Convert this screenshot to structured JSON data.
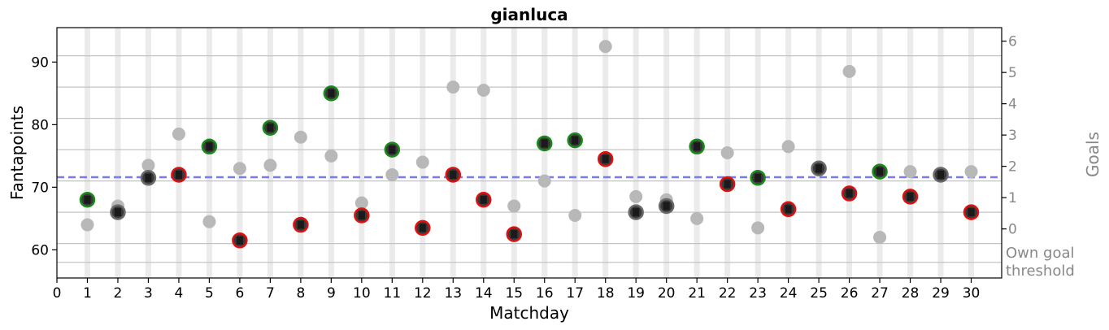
{
  "chart_data": {
    "type": "scatter",
    "title": "gianluca",
    "xlabel": "Matchday",
    "ylabel": "Fantapoints",
    "y2label": "Goals",
    "xlim": [
      0,
      31
    ],
    "ylim": [
      55.5,
      95.5
    ],
    "x_ticks": [
      0,
      1,
      2,
      3,
      4,
      5,
      6,
      7,
      8,
      9,
      10,
      11,
      12,
      13,
      14,
      15,
      16,
      17,
      18,
      19,
      20,
      21,
      22,
      23,
      24,
      25,
      26,
      27,
      28,
      29,
      30
    ],
    "y_ticks": [
      60,
      70,
      80,
      90
    ],
    "goals_ticks": [
      {
        "label": "6",
        "y": 91
      },
      {
        "label": "5",
        "y": 86
      },
      {
        "label": "4",
        "y": 81
      },
      {
        "label": "3",
        "y": 76
      },
      {
        "label": "2",
        "y": 71
      },
      {
        "label": "1",
        "y": 66
      },
      {
        "label": "0",
        "y": 61
      }
    ],
    "own_goal_label": [
      "Own goal",
      "threshold"
    ],
    "threshold_y": 58,
    "mean_line_y": 71.6,
    "colors": {
      "mean_line": "#7b7bf0",
      "background_points": "#b8b8b8",
      "win_ring": "#1a8a1a",
      "loss_ring": "#e01010",
      "draw_ring": "#6a6a6a",
      "marker_fill": "#1a1a1a",
      "matchday_band": "#ebebeb",
      "goal_gridline": "#c4c4c4",
      "goals_axis_text": "#888888"
    },
    "series": [
      {
        "role": "opponents",
        "points": [
          {
            "x": 1,
            "y": 64
          },
          {
            "x": 2,
            "y": 67
          },
          {
            "x": 3,
            "y": 73.5
          },
          {
            "x": 4,
            "y": 78.5
          },
          {
            "x": 5,
            "y": 64.5
          },
          {
            "x": 6,
            "y": 73
          },
          {
            "x": 7,
            "y": 73.5
          },
          {
            "x": 8,
            "y": 78
          },
          {
            "x": 9,
            "y": 75
          },
          {
            "x": 10,
            "y": 67.5
          },
          {
            "x": 11,
            "y": 72
          },
          {
            "x": 12,
            "y": 74
          },
          {
            "x": 13,
            "y": 86
          },
          {
            "x": 14,
            "y": 85.5
          },
          {
            "x": 15,
            "y": 67
          },
          {
            "x": 16,
            "y": 71
          },
          {
            "x": 17,
            "y": 65.5
          },
          {
            "x": 18,
            "y": 92.5
          },
          {
            "x": 19,
            "y": 68.5
          },
          {
            "x": 20,
            "y": 68
          },
          {
            "x": 21,
            "y": 65
          },
          {
            "x": 22,
            "y": 75.5
          },
          {
            "x": 23,
            "y": 63.5
          },
          {
            "x": 24,
            "y": 76.5
          },
          {
            "x": 25,
            "y": 73
          },
          {
            "x": 26,
            "y": 88.5
          },
          {
            "x": 27,
            "y": 62
          },
          {
            "x": 28,
            "y": 72.5
          },
          {
            "x": 29,
            "y": 72
          },
          {
            "x": 30,
            "y": 72.5
          }
        ]
      },
      {
        "role": "gianluca",
        "points": [
          {
            "x": 1,
            "y": 68,
            "result": "win"
          },
          {
            "x": 2,
            "y": 66,
            "result": "draw"
          },
          {
            "x": 3,
            "y": 71.5,
            "result": "draw"
          },
          {
            "x": 4,
            "y": 72,
            "result": "loss"
          },
          {
            "x": 5,
            "y": 76.5,
            "result": "win"
          },
          {
            "x": 6,
            "y": 61.5,
            "result": "loss"
          },
          {
            "x": 7,
            "y": 79.5,
            "result": "win"
          },
          {
            "x": 8,
            "y": 64,
            "result": "loss"
          },
          {
            "x": 9,
            "y": 85,
            "result": "win"
          },
          {
            "x": 10,
            "y": 65.5,
            "result": "loss"
          },
          {
            "x": 11,
            "y": 76,
            "result": "win"
          },
          {
            "x": 12,
            "y": 63.5,
            "result": "loss"
          },
          {
            "x": 13,
            "y": 72,
            "result": "loss"
          },
          {
            "x": 14,
            "y": 68,
            "result": "loss"
          },
          {
            "x": 15,
            "y": 62.5,
            "result": "loss"
          },
          {
            "x": 16,
            "y": 77,
            "result": "win"
          },
          {
            "x": 17,
            "y": 77.5,
            "result": "win"
          },
          {
            "x": 18,
            "y": 74.5,
            "result": "loss"
          },
          {
            "x": 19,
            "y": 66,
            "result": "draw"
          },
          {
            "x": 20,
            "y": 67,
            "result": "draw"
          },
          {
            "x": 21,
            "y": 76.5,
            "result": "win"
          },
          {
            "x": 22,
            "y": 70.5,
            "result": "loss"
          },
          {
            "x": 23,
            "y": 71.5,
            "result": "win"
          },
          {
            "x": 24,
            "y": 66.5,
            "result": "loss"
          },
          {
            "x": 25,
            "y": 73,
            "result": "draw"
          },
          {
            "x": 26,
            "y": 69,
            "result": "loss"
          },
          {
            "x": 27,
            "y": 72.5,
            "result": "win"
          },
          {
            "x": 28,
            "y": 68.5,
            "result": "loss"
          },
          {
            "x": 29,
            "y": 72,
            "result": "draw"
          },
          {
            "x": 30,
            "y": 66,
            "result": "loss"
          }
        ]
      }
    ],
    "grid": {
      "x_bands": true,
      "goal_lines": true
    },
    "legend": "none"
  }
}
